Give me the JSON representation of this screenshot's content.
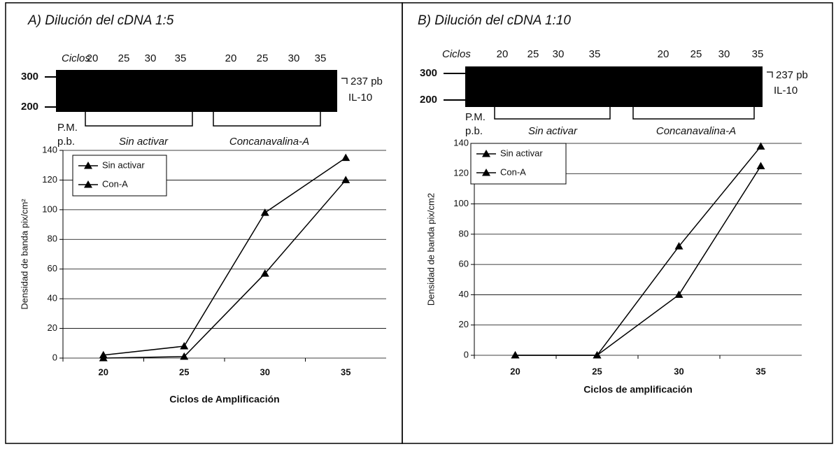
{
  "chart_data": [
    {
      "type": "line",
      "title": "A) Dilución del cDNA 1:5",
      "gel": {
        "cycles_label": "Ciclos",
        "lanes": [
          20,
          25,
          30,
          35,
          20,
          25,
          30,
          35
        ],
        "markers": [
          300,
          200
        ],
        "band_label": "237 pb",
        "gene": "IL-10",
        "pm": "P.M.",
        "pb": "p.b.",
        "groups": [
          "Sin activar",
          "Concanavalina-A"
        ]
      },
      "categories": [
        "20",
        "25",
        "30",
        "35"
      ],
      "series": [
        {
          "name": "Sin activar",
          "color": "#000000",
          "values": [
            2,
            8,
            98,
            135
          ]
        },
        {
          "name": "Con-A",
          "color": "#000000",
          "values": [
            0,
            1,
            57,
            120
          ]
        }
      ],
      "ylim": [
        0,
        140
      ],
      "yticks": [
        0,
        20,
        40,
        60,
        80,
        100,
        120,
        140
      ],
      "grid": true,
      "xlabel": "Ciclos de Amplificación",
      "ylabel": "Densidad de banda pix/cm²",
      "legend": "top-left"
    },
    {
      "type": "line",
      "title": "B) Dilución del cDNA 1:10",
      "gel": {
        "cycles_label": "Ciclos",
        "lanes": [
          20,
          25,
          30,
          35,
          20,
          25,
          30,
          35
        ],
        "markers": [
          300,
          200
        ],
        "band_label": "237 pb",
        "gene": "IL-10",
        "pm": "P.M.",
        "pb": "p.b.",
        "groups": [
          "Sin activar",
          "Concanavalina-A"
        ]
      },
      "categories": [
        "20",
        "25",
        "30",
        "35"
      ],
      "series": [
        {
          "name": "Sin activar",
          "color": "#000000",
          "values": [
            0,
            0,
            72,
            138
          ]
        },
        {
          "name": "Con-A",
          "color": "#000000",
          "values": [
            0,
            0,
            40,
            125
          ]
        }
      ],
      "ylim": [
        0,
        140
      ],
      "yticks": [
        0,
        20,
        40,
        60,
        80,
        100,
        120,
        140
      ],
      "grid": true,
      "xlabel": "Ciclos de amplificación",
      "ylabel": "Densidad de banda pix/cm2",
      "legend": "top-left"
    }
  ]
}
